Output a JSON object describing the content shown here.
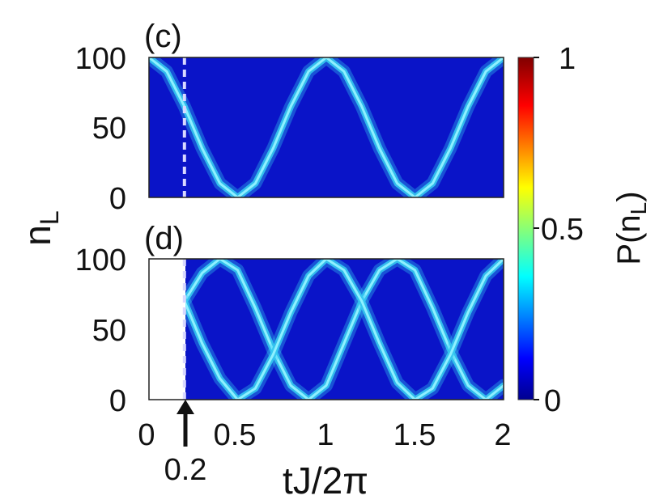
{
  "chart_data": [
    {
      "panel": "(c)",
      "type": "heatmap",
      "xlim": [
        0,
        2
      ],
      "ylim": [
        0,
        100
      ],
      "x_ticks": [
        "0",
        "0.5",
        "1",
        "1.5",
        "2"
      ],
      "y_ticks": [
        "0",
        "50",
        "100"
      ],
      "marker_x": 0.2,
      "ridges": [
        {
          "points": [
            [
              0.0,
              100
            ],
            [
              0.1,
              90
            ],
            [
              0.2,
              65
            ],
            [
              0.3,
              35
            ],
            [
              0.4,
              10
            ],
            [
              0.5,
              0
            ],
            [
              0.6,
              10
            ],
            [
              0.7,
              35
            ],
            [
              0.8,
              65
            ],
            [
              0.9,
              90
            ],
            [
              1.0,
              100
            ],
            [
              1.1,
              90
            ],
            [
              1.2,
              65
            ],
            [
              1.3,
              35
            ],
            [
              1.4,
              10
            ],
            [
              1.5,
              0
            ],
            [
              1.6,
              10
            ],
            [
              1.7,
              35
            ],
            [
              1.8,
              65
            ],
            [
              1.9,
              90
            ],
            [
              2.0,
              100
            ]
          ]
        }
      ]
    },
    {
      "panel": "(d)",
      "type": "heatmap",
      "xlim": [
        0,
        2
      ],
      "ylim": [
        0,
        100
      ],
      "x_ticks": [
        "0",
        "0.5",
        "1",
        "1.5",
        "2"
      ],
      "y_ticks": [
        "0",
        "50",
        "100"
      ],
      "data_start_x": 0.2,
      "marker_x": 0.2,
      "ridges": [
        {
          "points": [
            [
              0.2,
              70
            ],
            [
              0.3,
              90
            ],
            [
              0.4,
              100
            ],
            [
              0.5,
              92
            ],
            [
              0.6,
              65
            ],
            [
              0.7,
              35
            ],
            [
              0.8,
              10
            ],
            [
              0.9,
              0
            ],
            [
              1.0,
              10
            ],
            [
              1.1,
              40
            ],
            [
              1.2,
              70
            ],
            [
              1.3,
              92
            ],
            [
              1.4,
              100
            ],
            [
              1.5,
              92
            ],
            [
              1.6,
              65
            ],
            [
              1.7,
              35
            ],
            [
              1.8,
              10
            ],
            [
              1.9,
              0
            ],
            [
              2.0,
              10
            ]
          ]
        },
        {
          "points": [
            [
              0.2,
              70
            ],
            [
              0.3,
              40
            ],
            [
              0.4,
              15
            ],
            [
              0.5,
              0
            ],
            [
              0.6,
              8
            ],
            [
              0.7,
              32
            ],
            [
              0.8,
              62
            ],
            [
              0.9,
              88
            ],
            [
              1.0,
              100
            ],
            [
              1.1,
              92
            ],
            [
              1.2,
              70
            ],
            [
              1.3,
              40
            ],
            [
              1.4,
              12
            ],
            [
              1.5,
              0
            ],
            [
              1.6,
              8
            ],
            [
              1.7,
              32
            ],
            [
              1.8,
              62
            ],
            [
              1.9,
              88
            ],
            [
              2.0,
              100
            ]
          ]
        }
      ]
    }
  ],
  "colorbar": {
    "label": "P(n",
    "label_sub": "L",
    "label_end": ")",
    "ticks": [
      "0",
      "0.5",
      "1"
    ],
    "min": 0,
    "max": 1
  },
  "labels": {
    "ylabel": "n",
    "ylabel_sub": "L",
    "xlabel": "tJ/2π",
    "arrow_value": "0.2"
  },
  "colors": {
    "background": "#0a14c8",
    "ridge": "#35c8f0",
    "ridge_bright": "#8ef0ff"
  }
}
